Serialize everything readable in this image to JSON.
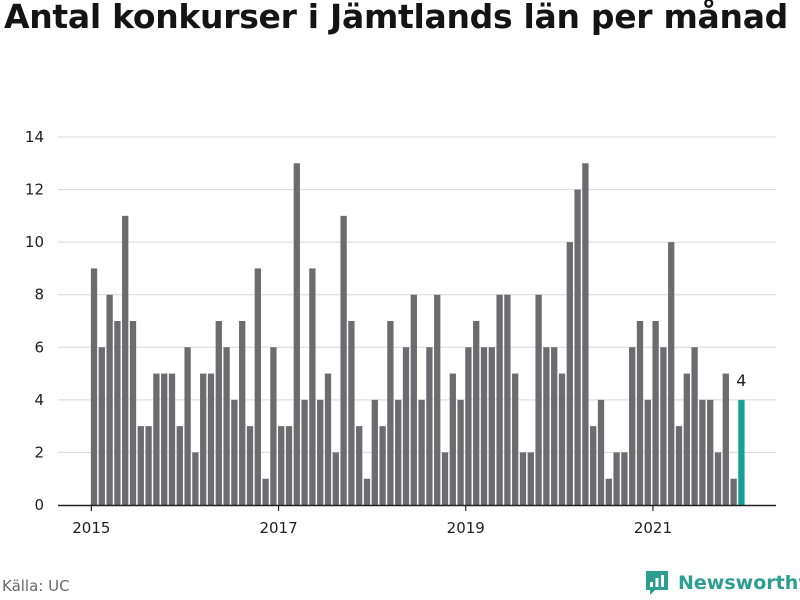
{
  "chart_data": {
    "type": "bar",
    "title": "Antal konkurser i Jämtlands län per månad",
    "xlabel": "",
    "ylabel": "",
    "ylim": [
      0,
      14
    ],
    "yticks": [
      0,
      2,
      4,
      6,
      8,
      10,
      12,
      14
    ],
    "xticks": [
      "2015",
      "2017",
      "2019",
      "2021"
    ],
    "grid": true,
    "start": "2015-01",
    "end": "2021-12",
    "values": [
      9,
      6,
      8,
      7,
      11,
      7,
      3,
      3,
      5,
      5,
      5,
      3,
      6,
      2,
      5,
      5,
      7,
      6,
      4,
      7,
      3,
      9,
      1,
      6,
      3,
      3,
      13,
      4,
      9,
      4,
      5,
      2,
      11,
      7,
      3,
      1,
      4,
      3,
      7,
      4,
      6,
      8,
      4,
      6,
      8,
      2,
      5,
      4,
      6,
      7,
      6,
      6,
      8,
      8,
      5,
      2,
      2,
      8,
      6,
      6,
      5,
      10,
      12,
      13,
      3,
      4,
      1,
      2,
      2,
      6,
      7,
      4,
      7,
      6,
      10,
      3,
      5,
      6,
      4,
      4,
      2,
      5,
      1,
      4
    ],
    "highlight_last": true,
    "last_label": "4",
    "colors": {
      "bar": "#6c6b70",
      "highlight": "#13a198",
      "grid": "#d9d9d9",
      "axis": "#222222"
    }
  },
  "source": "Källa: UC",
  "brand": {
    "name": "Newsworthy",
    "logo_icon": "bar-chart-logo-icon",
    "color": "#2c9e8f"
  }
}
